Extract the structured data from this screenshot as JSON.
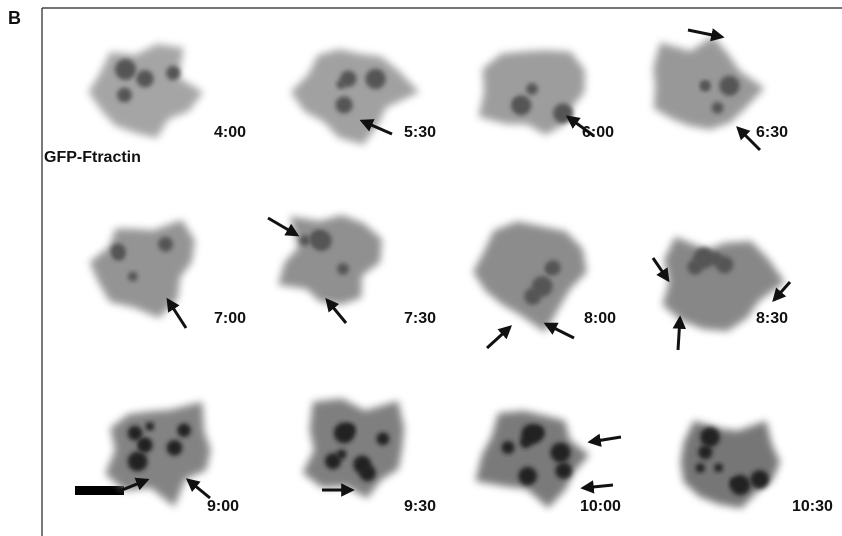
{
  "panel_label": "B",
  "label": "GFP-Ftractin",
  "frames": [
    {
      "time": "4:00"
    },
    {
      "time": "5:30"
    },
    {
      "time": "6:00"
    },
    {
      "time": "6:30"
    },
    {
      "time": "7:00"
    },
    {
      "time": "7:30"
    },
    {
      "time": "8:00"
    },
    {
      "time": "8:30"
    },
    {
      "time": "9:00"
    },
    {
      "time": "9:30"
    },
    {
      "time": "10:00"
    },
    {
      "time": "10:30"
    }
  ]
}
